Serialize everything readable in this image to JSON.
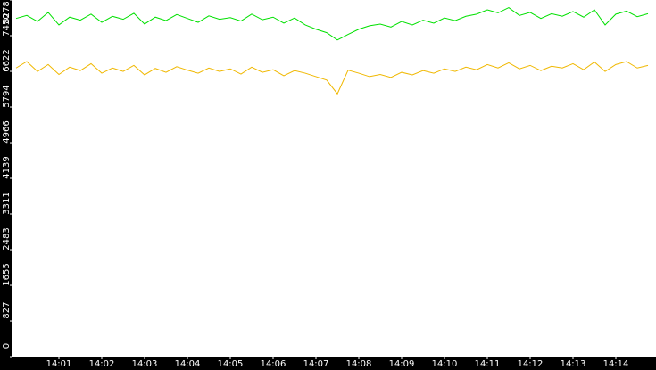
{
  "chart_data": {
    "type": "line",
    "categories": [
      null,
      null,
      null,
      null,
      "14:01",
      null,
      null,
      null,
      "14:02",
      null,
      null,
      null,
      "14:03",
      null,
      null,
      null,
      "14:04",
      null,
      null,
      null,
      "14:05",
      null,
      null,
      null,
      "14:06",
      null,
      null,
      null,
      "14:07",
      null,
      null,
      null,
      "14:08",
      null,
      null,
      null,
      "14:09",
      null,
      null,
      null,
      "14:10",
      null,
      null,
      null,
      "14:11",
      null,
      null,
      null,
      "14:12",
      null,
      null,
      null,
      "14:13",
      null,
      null,
      null,
      "14:14",
      null,
      null,
      null
    ],
    "series": [
      {
        "color": "#00e000",
        "values": [
          7850,
          7920,
          7780,
          7990,
          7700,
          7880,
          7810,
          7950,
          7760,
          7900,
          7830,
          7970,
          7720,
          7880,
          7800,
          7940,
          7850,
          7760,
          7910,
          7830,
          7870,
          7790,
          7950,
          7820,
          7880,
          7740,
          7860,
          7700,
          7600,
          7520,
          7350,
          7480,
          7600,
          7680,
          7720,
          7650,
          7780,
          7700,
          7810,
          7740,
          7860,
          7800,
          7900,
          7950,
          8050,
          7980,
          8100,
          7920,
          7990,
          7850,
          7960,
          7900,
          8010,
          7880,
          8050,
          7700,
          7950,
          8020,
          7890,
          7960
        ]
      },
      {
        "color": "#f0b800",
        "values": [
          6700,
          6850,
          6620,
          6780,
          6550,
          6720,
          6640,
          6800,
          6580,
          6700,
          6620,
          6760,
          6540,
          6690,
          6600,
          6730,
          6650,
          6580,
          6700,
          6620,
          6680,
          6560,
          6720,
          6600,
          6660,
          6520,
          6640,
          6580,
          6500,
          6420,
          6100,
          6650,
          6580,
          6500,
          6550,
          6480,
          6600,
          6540,
          6640,
          6580,
          6680,
          6620,
          6720,
          6660,
          6780,
          6700,
          6820,
          6680,
          6760,
          6640,
          6740,
          6700,
          6800,
          6660,
          6840,
          6620,
          6780,
          6850,
          6700,
          6760
        ]
      }
    ],
    "ylim": [
      0,
      8278
    ],
    "yticks": [
      0,
      827,
      1655,
      2483,
      3311,
      4139,
      4966,
      5794,
      6622,
      7450,
      8278
    ]
  }
}
